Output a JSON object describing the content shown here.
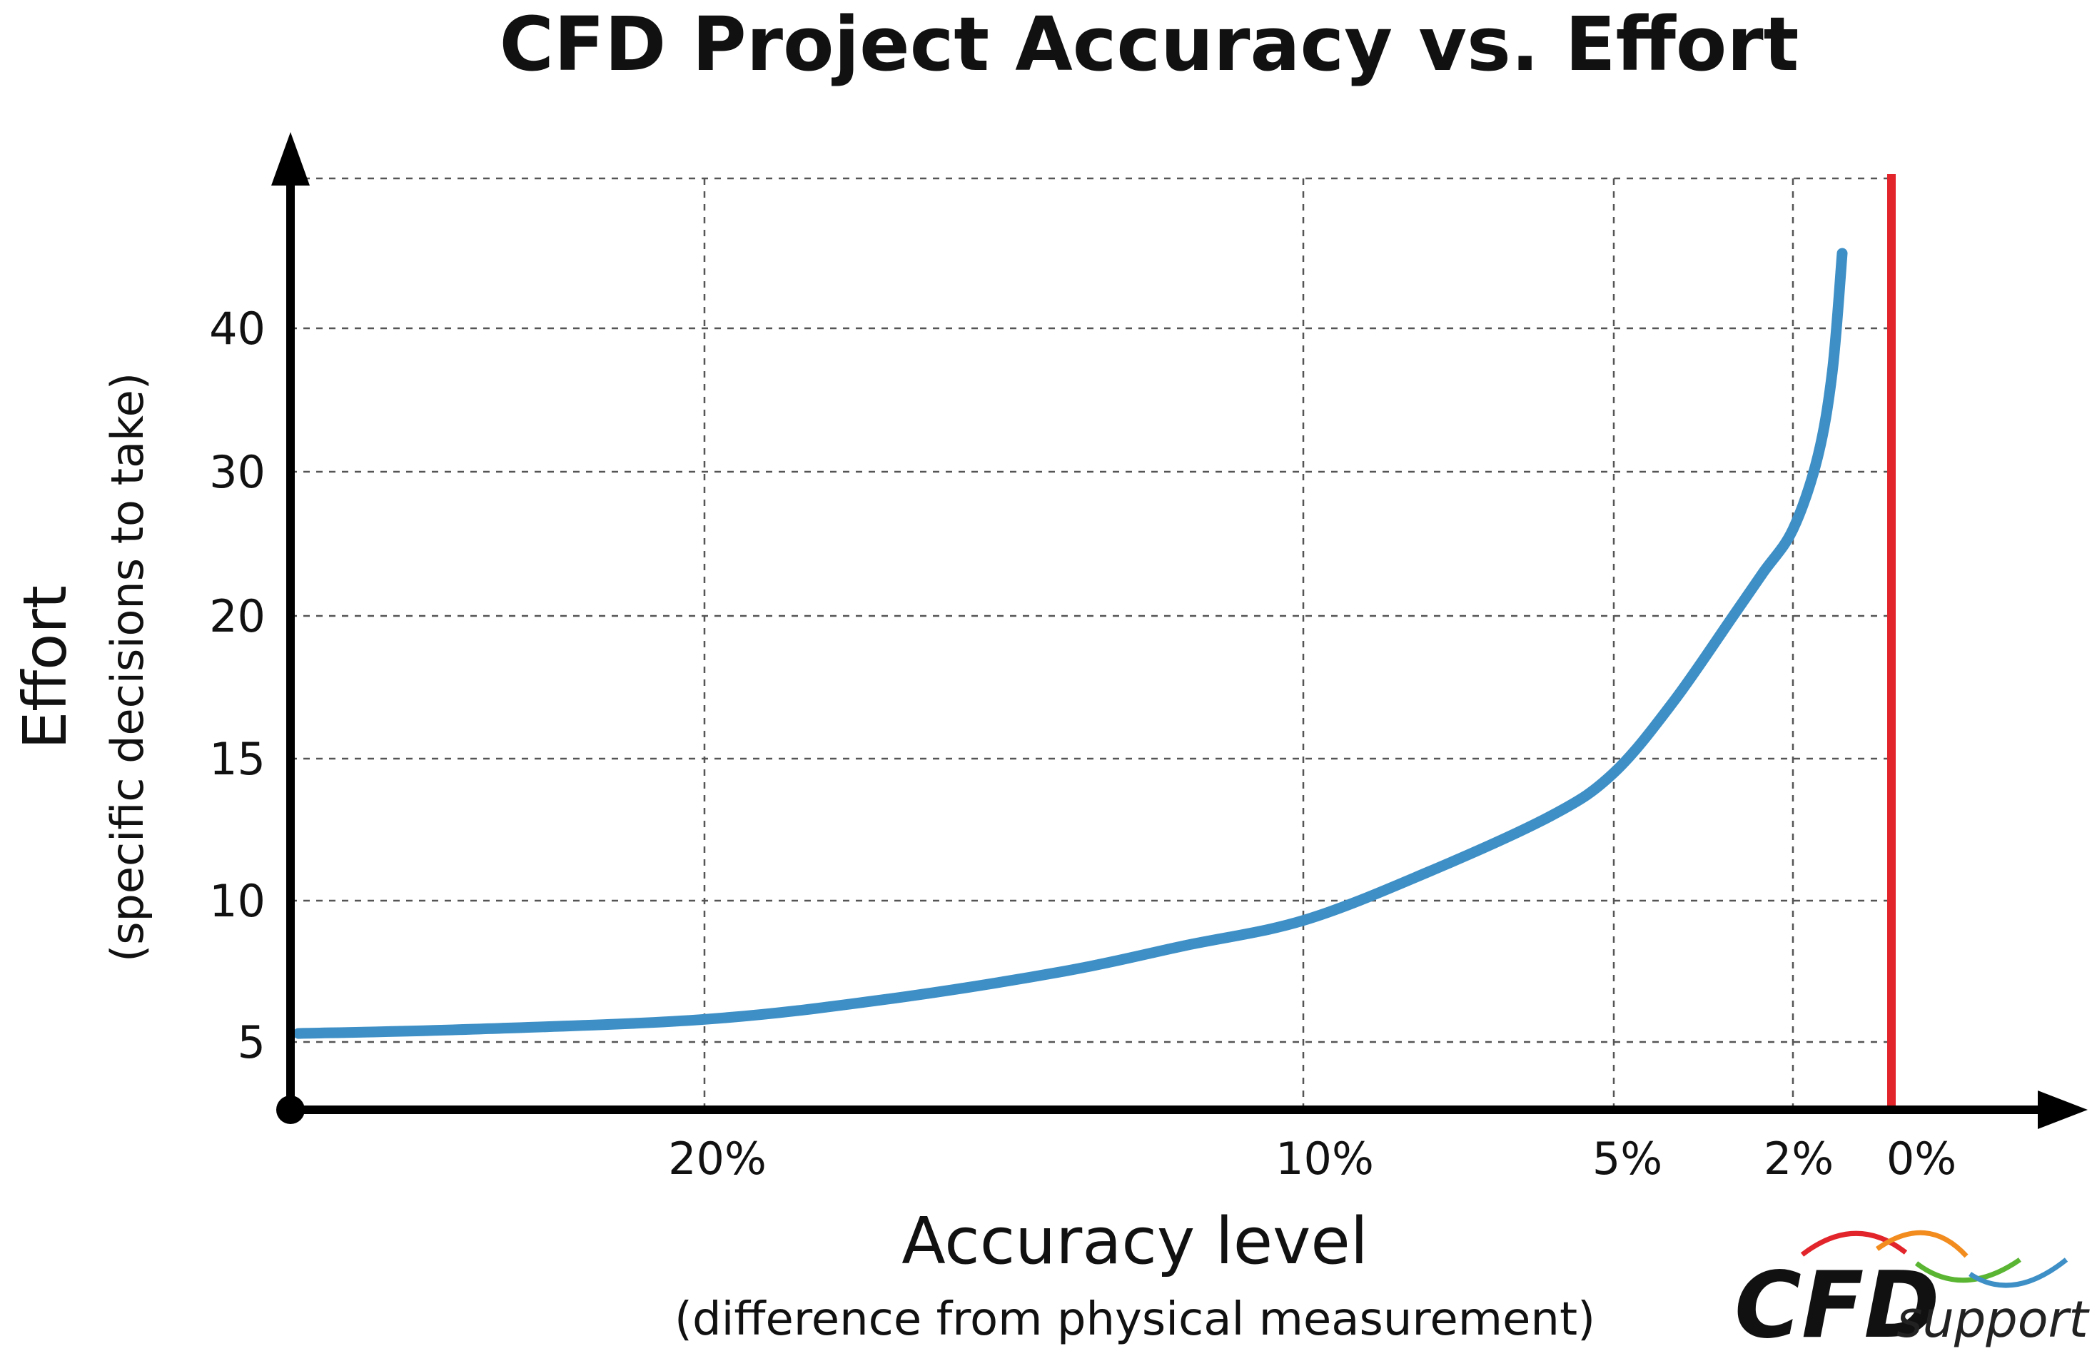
{
  "chart_data": {
    "type": "line",
    "title": "CFD Project Accuracy vs. Effort",
    "xlabel": "Accuracy level",
    "xlabel_sub": "(difference from physical measurement)",
    "ylabel": "Effort",
    "ylabel_sub": "(specific decisions to take)",
    "x_ticks": [
      {
        "label": "20%",
        "value": 20
      },
      {
        "label": "10%",
        "value": 10
      },
      {
        "label": "5%",
        "value": 5
      },
      {
        "label": "2%",
        "value": 2
      },
      {
        "label": "0%",
        "value": 0
      }
    ],
    "y_ticks": [
      {
        "label": "5",
        "value": 5
      },
      {
        "label": "10",
        "value": 10
      },
      {
        "label": "15",
        "value": 15
      },
      {
        "label": "20",
        "value": 20
      },
      {
        "label": "30",
        "value": 30
      },
      {
        "label": "40",
        "value": 40
      }
    ],
    "grid": true,
    "series": [
      {
        "name": "Effort",
        "color": "#3d8fc6",
        "points": [
          {
            "x": 27,
            "y": 5.3
          },
          {
            "x": 24,
            "y": 5.45
          },
          {
            "x": 20,
            "y": 5.8
          },
          {
            "x": 17,
            "y": 6.5
          },
          {
            "x": 14,
            "y": 7.5
          },
          {
            "x": 12,
            "y": 8.4
          },
          {
            "x": 10,
            "y": 9.3
          },
          {
            "x": 8,
            "y": 11.0
          },
          {
            "x": 6,
            "y": 13.0
          },
          {
            "x": 5,
            "y": 14.5
          },
          {
            "x": 4,
            "y": 17.0
          },
          {
            "x": 3,
            "y": 20.0
          },
          {
            "x": 2.5,
            "y": 23.0
          },
          {
            "x": 2,
            "y": 26.0
          },
          {
            "x": 1.5,
            "y": 31.0
          },
          {
            "x": 1.2,
            "y": 37.0
          },
          {
            "x": 1.0,
            "y": 43.5
          }
        ]
      }
    ],
    "reference_line": {
      "x": 0,
      "color": "#e2242b"
    }
  },
  "logo": {
    "brand": "CFD",
    "suffix": "support",
    "arrow_colors": [
      "#e2242b",
      "#f28c1e",
      "#5ab532",
      "#3d8fc6"
    ]
  }
}
